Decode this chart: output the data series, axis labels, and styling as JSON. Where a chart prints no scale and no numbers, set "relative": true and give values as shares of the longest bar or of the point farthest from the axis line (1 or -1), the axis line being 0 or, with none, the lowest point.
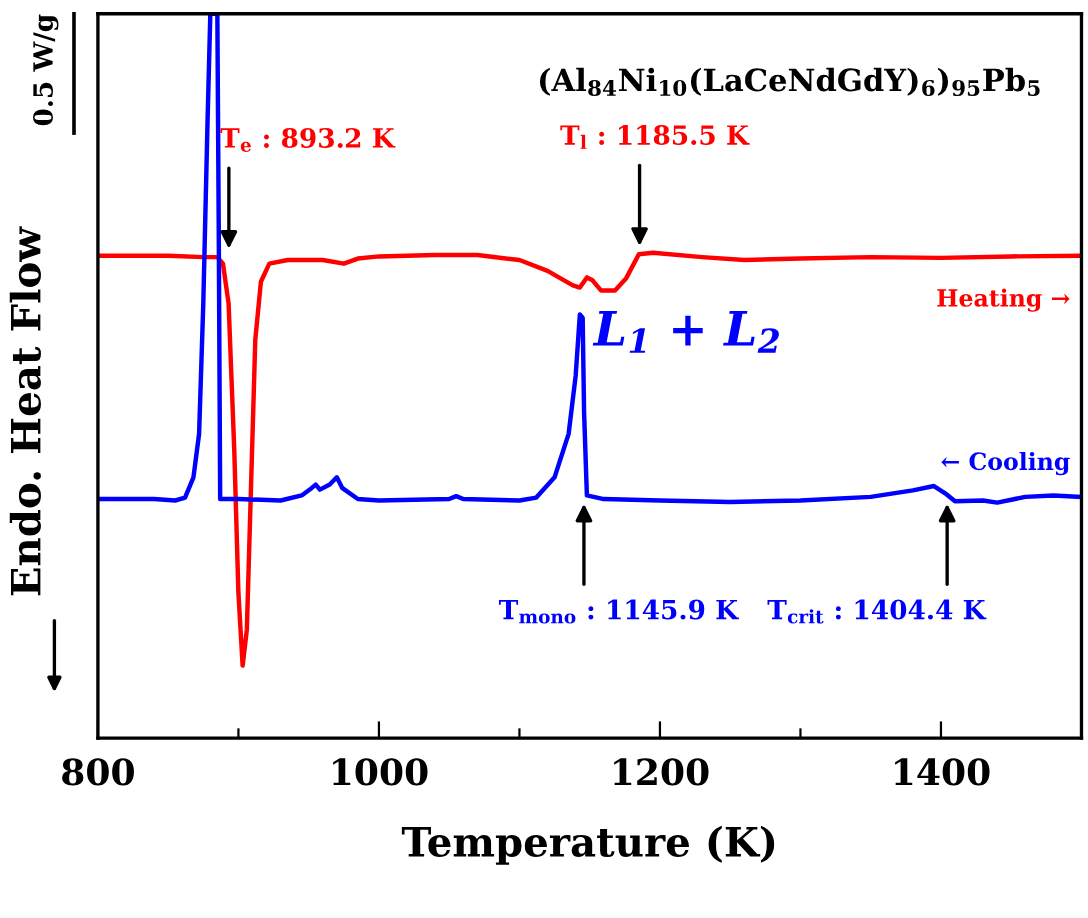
{
  "chart_data": {
    "type": "line",
    "relative": true,
    "title": "(Al$_{84}$Ni$_{10}$(LaCeNdGdY)$_{6}$)$_{95}$Pb$_{5}$",
    "xlabel": "Temperature (K)",
    "ylabel": "Endo. Heat Flow",
    "xlim": [
      800,
      1500
    ],
    "xticks": [
      800,
      {
        "value": 900,
        "label": null
      },
      1000,
      {
        "value": 1100,
        "label": null
      },
      1200,
      {
        "value": 1300,
        "label": null
      },
      1400
    ],
    "tick_labels": "x",
    "grid": false,
    "legend": false,
    "marker": "none",
    "line_style": "solid",
    "series": [
      {
        "name": "Heating →",
        "color": "#ff0000",
        "x": [
          800,
          850,
          875,
          885,
          889,
          893,
          897,
          900,
          903,
          906,
          909,
          912,
          916,
          922,
          935,
          960,
          975,
          985,
          1000,
          1040,
          1070,
          1100,
          1120,
          1138,
          1143,
          1148,
          1152,
          1158,
          1168,
          1176,
          1185,
          1195,
          1230,
          1260,
          1300,
          1350,
          1400,
          1450,
          1500
        ],
        "values": [
          0.666,
          0.666,
          0.664,
          0.664,
          0.655,
          0.6,
          0.4,
          0.2,
          0.1,
          0.15,
          0.35,
          0.55,
          0.63,
          0.655,
          0.66,
          0.66,
          0.655,
          0.662,
          0.665,
          0.667,
          0.667,
          0.66,
          0.645,
          0.625,
          0.622,
          0.636,
          0.632,
          0.618,
          0.618,
          0.635,
          0.668,
          0.67,
          0.664,
          0.66,
          0.662,
          0.664,
          0.663,
          0.665,
          0.666
        ]
      },
      {
        "name": "← Cooling",
        "color": "#0000ff",
        "x": [
          800,
          840,
          855,
          862,
          868,
          872,
          875,
          878,
          880,
          885,
          886,
          887,
          900,
          930,
          945,
          952,
          955,
          958,
          965,
          970,
          974,
          985,
          1000,
          1050,
          1055,
          1060,
          1100,
          1112,
          1125,
          1135,
          1140,
          1143,
          1145,
          1146,
          1148,
          1160,
          1200,
          1250,
          1300,
          1350,
          1380,
          1395,
          1403,
          1410,
          1430,
          1440,
          1460,
          1480,
          1500
        ],
        "values": [
          0.33,
          0.33,
          0.328,
          0.332,
          0.36,
          0.42,
          0.6,
          0.85,
          1.0,
          1.0,
          0.7,
          0.33,
          0.33,
          0.328,
          0.335,
          0.345,
          0.35,
          0.343,
          0.35,
          0.36,
          0.345,
          0.33,
          0.328,
          0.33,
          0.334,
          0.33,
          0.328,
          0.332,
          0.36,
          0.42,
          0.5,
          0.585,
          0.58,
          0.45,
          0.335,
          0.33,
          0.328,
          0.326,
          0.328,
          0.333,
          0.342,
          0.348,
          0.338,
          0.327,
          0.328,
          0.325,
          0.333,
          0.335,
          0.333
        ]
      }
    ],
    "annotations": [
      {
        "text": "T$_{e}$ : 893.2 K",
        "x": 893.2,
        "y": 0.664
      },
      {
        "text": "T$_{l}$ : 1185.5 K",
        "x": 1185.5,
        "y": 0.668
      },
      {
        "text": "T$_{mono}$ : 1145.9 K",
        "x": 1145.9,
        "y": 0.335
      },
      {
        "text": "T$_{crit}$ : 1404.4 K",
        "x": 1404.4,
        "y": 0.335
      },
      "0.5 W/g",
      "L$_{1}$ + L$_{2}$"
    ]
  }
}
